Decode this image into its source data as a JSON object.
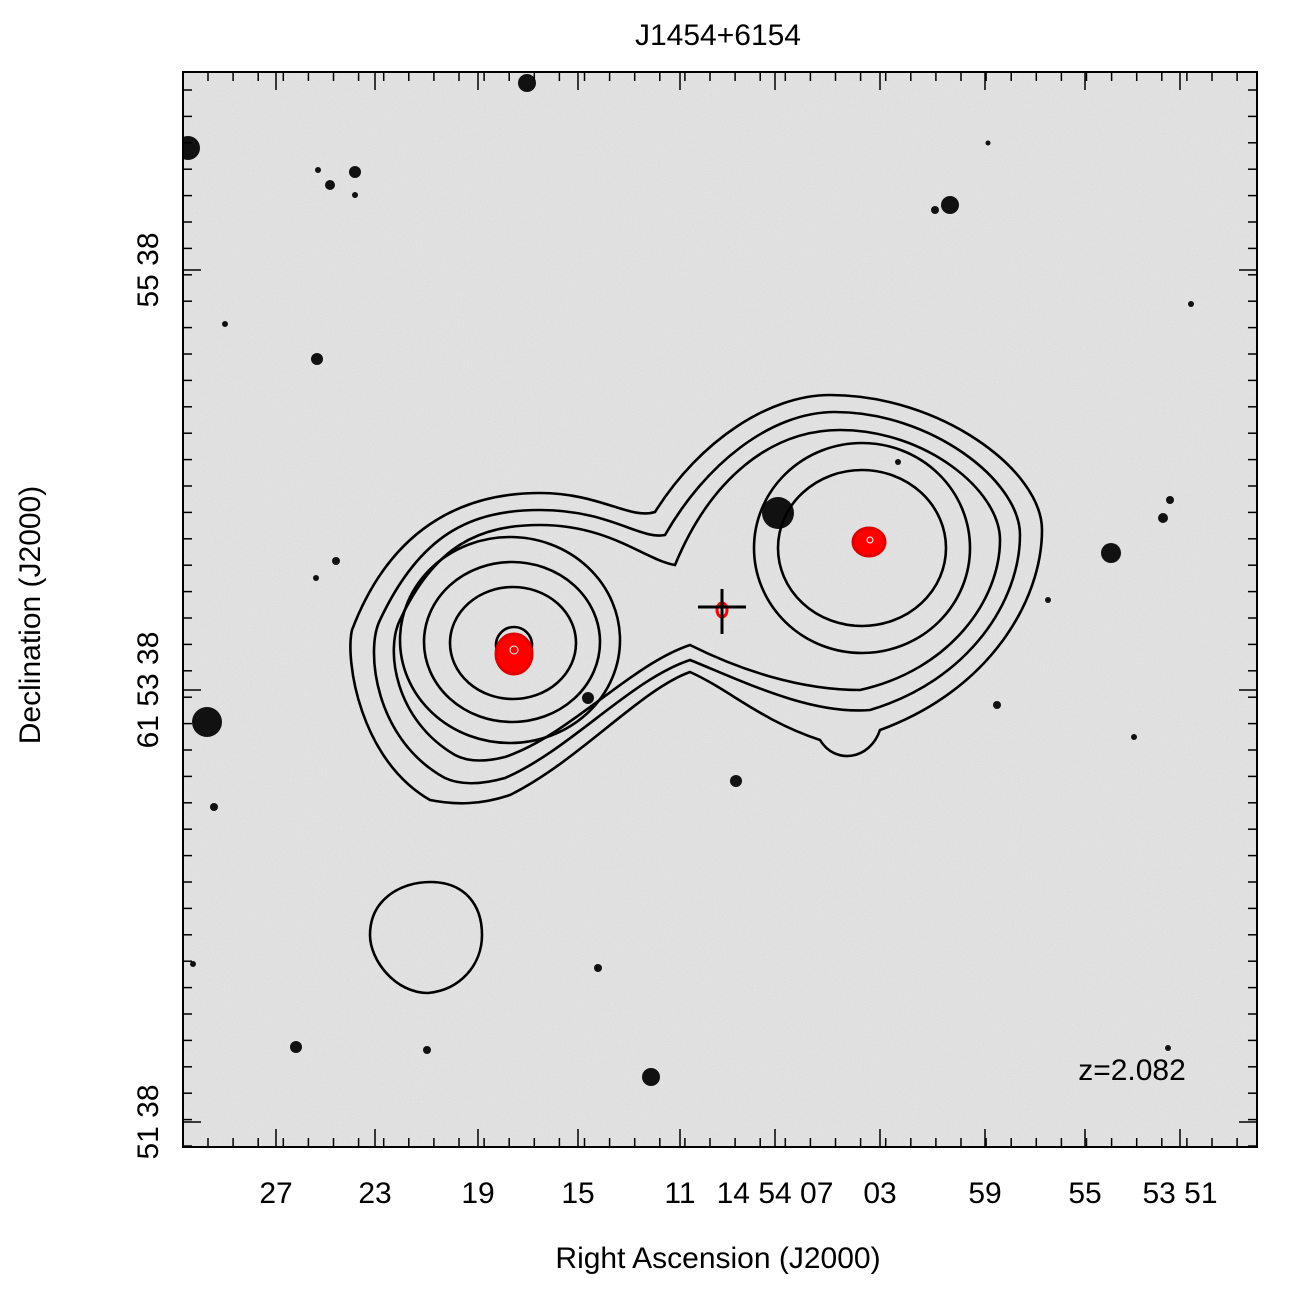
{
  "title": "J1454+6154",
  "x_axis": {
    "label": "Right Ascension (J2000)",
    "tick_labels": [
      "27",
      "23",
      "19",
      "15",
      "11",
      "14 54 07",
      "03",
      "59",
      "55",
      "53 51"
    ]
  },
  "y_axis": {
    "label": "Declination (J2000)",
    "tick_labels": [
      "55 38",
      "61 53 38",
      "51 38"
    ]
  },
  "annotation": "z=2.082"
}
